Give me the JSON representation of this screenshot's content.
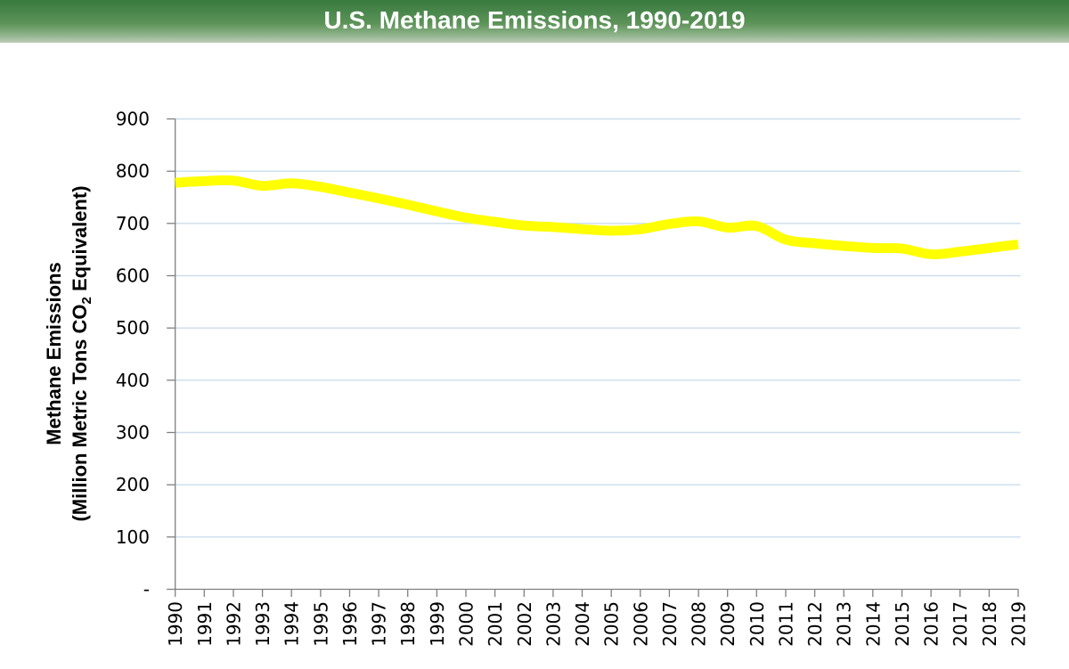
{
  "header": {
    "title": "U.S. Methane Emissions, 1990-2019",
    "bg_top_color": "#39793d",
    "bg_bottom_color": "#bccdb8",
    "text_color": "#ffffff"
  },
  "chart_data": {
    "type": "line",
    "title": "U.S. Methane Emissions, 1990-2019",
    "x": [
      "1990",
      "1991",
      "1992",
      "1993",
      "1994",
      "1995",
      "1996",
      "1997",
      "1998",
      "1999",
      "2000",
      "2001",
      "2002",
      "2003",
      "2004",
      "2005",
      "2006",
      "2007",
      "2008",
      "2009",
      "2010",
      "2011",
      "2012",
      "2013",
      "2014",
      "2015",
      "2016",
      "2017",
      "2018",
      "2019"
    ],
    "series": [
      {
        "name": "U.S. Methane Emissions",
        "values": [
          778,
          781,
          782,
          772,
          777,
          770,
          759,
          748,
          736,
          723,
          711,
          703,
          696,
          693,
          689,
          686,
          689,
          699,
          704,
          692,
          695,
          669,
          662,
          657,
          653,
          652,
          641,
          646,
          653,
          660
        ]
      }
    ],
    "xlabel": "",
    "ylabel_line1": "Methane Emissions",
    "ylabel_line2_pre": "(Million Metric Tons CO",
    "ylabel_line2_sub": "2",
    "ylabel_line2_post": " Equivalent)",
    "ylim": [
      0,
      900
    ],
    "ytick_step": 100,
    "ytick_labels": [
      "-",
      "100",
      "200",
      "300",
      "400",
      "500",
      "600",
      "700",
      "800",
      "900"
    ],
    "grid": "horizontal-only",
    "legend": "none",
    "colors": {
      "line": "#ffff00",
      "gridline": "#cadded",
      "axis": "#7f7f7f",
      "tick_text": "#000000"
    }
  }
}
